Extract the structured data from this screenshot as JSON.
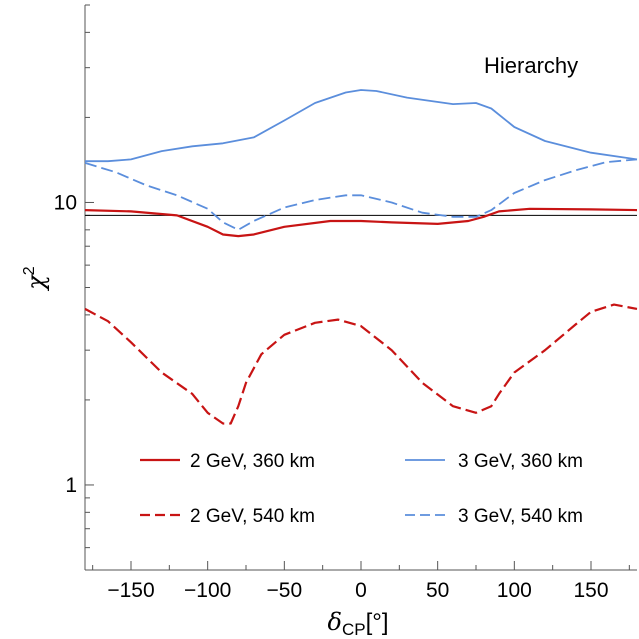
{
  "chart_data": {
    "type": "line",
    "title": "",
    "annotation": "Hierarchy",
    "xlabel": {
      "base": "δ",
      "sub": "CP",
      "unit": "[°]"
    },
    "ylabel": {
      "base": "χ",
      "sup": "2"
    },
    "xlim": [
      -180,
      180
    ],
    "ylim": [
      0.5,
      50
    ],
    "yscale": "log",
    "x_ticks": [
      -150,
      -100,
      -50,
      0,
      50,
      100,
      150
    ],
    "x_tick_labels": [
      "−150",
      "−100",
      "−50",
      "0",
      "50",
      "100",
      "150"
    ],
    "y_ticks": [
      1,
      10
    ],
    "y_tick_labels": [
      "1",
      "10"
    ],
    "reference_lines": [
      {
        "y": 9.0
      }
    ],
    "legend_position": "bottom",
    "series": [
      {
        "name": "2 GeV, 360 km",
        "color": "#c81414",
        "style": "solid",
        "x": [
          -180,
          -150,
          -120,
          -100,
          -90,
          -80,
          -70,
          -50,
          -20,
          0,
          20,
          50,
          70,
          80,
          90,
          110,
          150,
          180
        ],
        "y": [
          9.4,
          9.3,
          9.0,
          8.2,
          7.7,
          7.6,
          7.7,
          8.2,
          8.6,
          8.6,
          8.5,
          8.4,
          8.6,
          8.9,
          9.3,
          9.5,
          9.45,
          9.4
        ]
      },
      {
        "name": "2 GeV, 540 km",
        "color": "#c81414",
        "style": "dashed",
        "x": [
          -180,
          -165,
          -150,
          -130,
          -110,
          -100,
          -90,
          -85,
          -80,
          -75,
          -65,
          -50,
          -30,
          -15,
          0,
          20,
          40,
          60,
          75,
          85,
          90,
          100,
          120,
          140,
          150,
          165,
          180
        ],
        "y": [
          4.2,
          3.8,
          3.2,
          2.5,
          2.1,
          1.8,
          1.65,
          1.65,
          1.9,
          2.3,
          2.9,
          3.4,
          3.75,
          3.85,
          3.65,
          3.0,
          2.3,
          1.9,
          1.8,
          1.9,
          2.1,
          2.5,
          3.0,
          3.7,
          4.1,
          4.35,
          4.2
        ]
      },
      {
        "name": "3 GeV, 360 km",
        "color": "#5b8edc",
        "style": "solid",
        "x": [
          -180,
          -165,
          -150,
          -130,
          -110,
          -90,
          -70,
          -50,
          -30,
          -10,
          0,
          10,
          30,
          60,
          75,
          85,
          100,
          120,
          150,
          180
        ],
        "y": [
          14.0,
          14.0,
          14.2,
          15.2,
          15.8,
          16.2,
          17.0,
          19.5,
          22.5,
          24.5,
          25.0,
          24.8,
          23.5,
          22.3,
          22.5,
          21.5,
          18.5,
          16.5,
          15.0,
          14.2
        ]
      },
      {
        "name": "3 GeV, 540 km",
        "color": "#5b8edc",
        "style": "dashed",
        "x": [
          -180,
          -160,
          -140,
          -120,
          -100,
          -90,
          -80,
          -70,
          -50,
          -30,
          -10,
          0,
          20,
          40,
          60,
          75,
          85,
          100,
          120,
          140,
          160,
          180
        ],
        "y": [
          13.8,
          12.8,
          11.5,
          10.6,
          9.5,
          8.5,
          8.0,
          8.6,
          9.6,
          10.2,
          10.6,
          10.6,
          10.0,
          9.2,
          8.9,
          8.9,
          9.4,
          10.8,
          12.0,
          13.0,
          13.9,
          14.2
        ]
      }
    ]
  }
}
